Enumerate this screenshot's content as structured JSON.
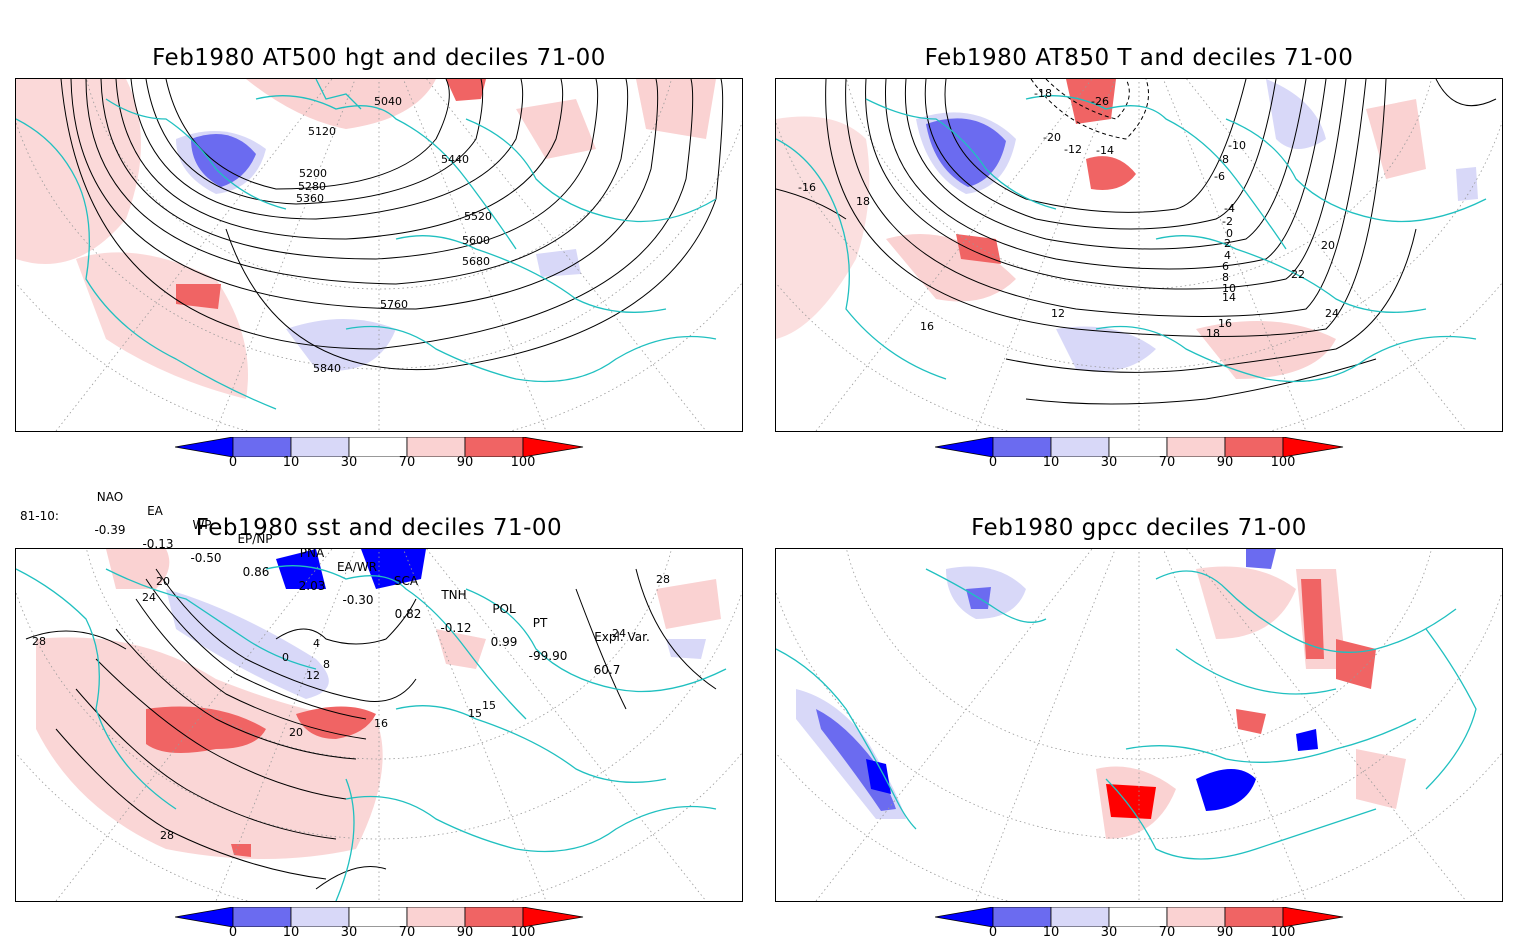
{
  "panels": [
    {
      "title": "Feb1980 AT500 hgt and deciles 71-00",
      "contour_labels": [
        "5040",
        "5120",
        "5200",
        "5280",
        "5360",
        "5440",
        "5520",
        "5600",
        "5680",
        "5760",
        "5840"
      ]
    },
    {
      "title": "Feb1980 AT850 T and deciles 71-00",
      "contour_labels": [
        "-18",
        "-26",
        "-20",
        "-12",
        "-14",
        "-10",
        "-8",
        "-6",
        "-4",
        "-2",
        "0",
        "2",
        "4",
        "6",
        "8",
        "10",
        "12",
        "14",
        "16",
        "18",
        "20",
        "22",
        "24",
        "-16",
        "16",
        "18"
      ]
    },
    {
      "title": "Feb1980 sst and deciles 71-00",
      "contour_labels": [
        "20",
        "24",
        "28",
        "0",
        "4",
        "8",
        "12",
        "16",
        "20",
        "28",
        "24",
        "28",
        "15",
        "15"
      ]
    },
    {
      "title": "Feb1980 gpcc deciles 71-00",
      "contour_labels": []
    }
  ],
  "colorbar": {
    "labels": [
      "0",
      "10",
      "30",
      "70",
      "90",
      "100"
    ],
    "colors": [
      "#0000ff",
      "#6b6bf0",
      "#d8d8f8",
      "#ffffff",
      "#fad2d2",
      "#f06464",
      "#ff0000"
    ]
  },
  "indices": {
    "headers": [
      "NAO",
      "EA",
      "WP",
      "EP/NP",
      "PNA",
      "EA/WR",
      "SCA",
      "TNH",
      "POL",
      "PT",
      "Expl. Var."
    ],
    "row_label": "81-10:",
    "values": [
      "-0.39",
      "-0.13",
      "-0.50",
      "0.86",
      "2.03",
      "-0.30",
      "0.82",
      "-0.12",
      "0.99",
      "-99.90",
      "60.7"
    ]
  },
  "colors": {
    "coastline": "#20c0c0",
    "contour": "#000000",
    "frame": "#000000"
  }
}
